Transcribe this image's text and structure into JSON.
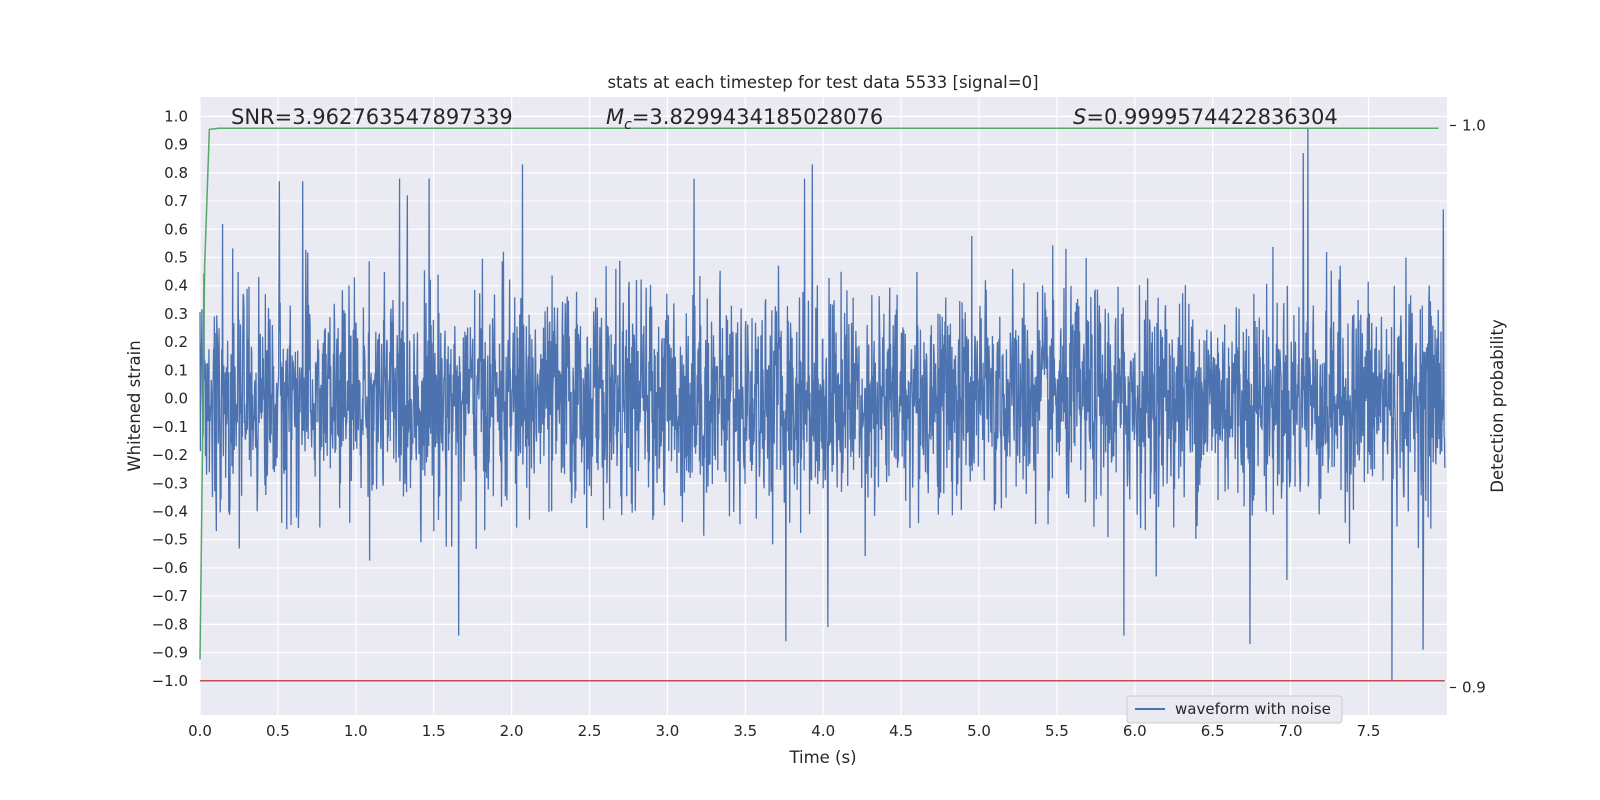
{
  "chart_data": {
    "type": "line",
    "title": "stats at each timestep for test data 5533 [signal=0]",
    "xlabel": "Time (s)",
    "ylabel": "Whitened strain",
    "y2label": "Detection probability",
    "xlim": [
      0.0,
      7.99
    ],
    "ylim": [
      -1.1,
      1.05
    ],
    "y2lim": [
      0.89,
      1.0025
    ],
    "xticks": [
      "0.0",
      "0.5",
      "1.0",
      "1.5",
      "2.0",
      "2.5",
      "3.0",
      "3.5",
      "4.0",
      "4.5",
      "5.0",
      "5.5",
      "6.0",
      "6.5",
      "7.0",
      "7.5"
    ],
    "yticks": [
      "1.0",
      "0.9",
      "0.8",
      "0.7",
      "0.6",
      "0.5",
      "0.4",
      "0.3",
      "0.2",
      "0.1",
      "0.0",
      "−0.1",
      "−0.2",
      "−0.3",
      "−0.4",
      "−0.5",
      "−0.6",
      "−0.7",
      "−0.8",
      "−0.9",
      "−1.0"
    ],
    "y2ticks": [
      "1.0",
      "0.9"
    ],
    "grid": true,
    "legend_position": "bottom-right",
    "annotations": {
      "snr": "SNR=3.962763547897339",
      "mc_symbol": "M",
      "mc_subscript": "c",
      "mc_value": "=3.8299434185028076",
      "s_symbol": "S",
      "s_value": "=0.9999574422836304"
    },
    "series": [
      {
        "name": "waveform with noise",
        "axis": "left",
        "color": "#4c72b0",
        "description_values": "noise waveform sampled across 0–7.99 s",
        "peaks_high": [
          [
            0.51,
            0.77
          ],
          [
            0.66,
            0.77
          ],
          [
            1.28,
            0.78
          ],
          [
            1.47,
            0.78
          ],
          [
            2.07,
            0.83
          ],
          [
            3.17,
            0.78
          ],
          [
            3.88,
            0.78
          ],
          [
            3.93,
            0.83
          ],
          [
            7.08,
            0.87
          ],
          [
            7.11,
            0.96
          ],
          [
            7.98,
            0.67
          ]
        ],
        "peaks_low": [
          [
            1.66,
            -0.84
          ],
          [
            3.76,
            -0.86
          ],
          [
            4.03,
            -0.81
          ],
          [
            5.93,
            -0.84
          ],
          [
            6.74,
            -0.87
          ],
          [
            7.65,
            -1.0
          ],
          [
            7.85,
            -0.89
          ]
        ],
        "typical_amplitude": 0.45
      },
      {
        "name": "",
        "axis": "right",
        "color": "#55a868",
        "x": [
          0.0,
          0.03,
          0.06,
          0.12,
          7.95
        ],
        "y": [
          0.905,
          0.975,
          0.9993,
          0.9995,
          0.9995
        ]
      },
      {
        "name": "",
        "axis": "left",
        "color": "#c44e52",
        "x": [
          0.0,
          7.99
        ],
        "y": [
          -1.0,
          -1.0
        ]
      }
    ]
  },
  "legend": {
    "entries": [
      "waveform with noise"
    ]
  }
}
